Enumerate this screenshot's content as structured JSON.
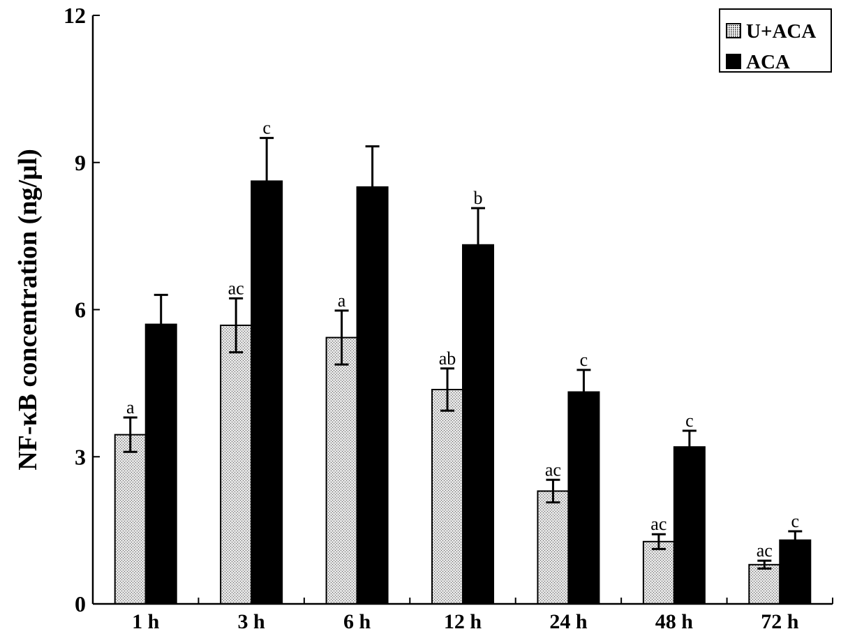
{
  "chart_data": {
    "type": "bar",
    "title": "",
    "xlabel": "",
    "ylabel": "NF-κB concentration (ng/μl)",
    "ylim": [
      0,
      12
    ],
    "yticks": [
      0,
      3,
      6,
      9,
      12
    ],
    "categories": [
      "1 h",
      "3 h",
      "6 h",
      "12 h",
      "24 h",
      "48 h",
      "72 h"
    ],
    "series": [
      {
        "name": "U+ACA",
        "pattern": "stipple",
        "color": "#c8c8c8",
        "values": [
          3.45,
          5.68,
          5.43,
          4.37,
          2.3,
          1.27,
          0.8
        ],
        "errors": [
          0.35,
          0.55,
          0.55,
          0.43,
          0.23,
          0.15,
          0.08
        ],
        "labels": [
          "a",
          "ac",
          "a",
          "ab",
          "ac",
          "ac",
          "ac"
        ]
      },
      {
        "name": "ACA",
        "pattern": "solid",
        "color": "#000000",
        "values": [
          5.7,
          8.62,
          8.5,
          7.32,
          4.32,
          3.2,
          1.3
        ],
        "errors": [
          0.6,
          0.88,
          0.83,
          0.75,
          0.45,
          0.33,
          0.18
        ],
        "labels": [
          "",
          "c",
          "",
          "b",
          "c",
          "c",
          "c"
        ]
      }
    ],
    "grid": false,
    "legend": "top-right"
  }
}
